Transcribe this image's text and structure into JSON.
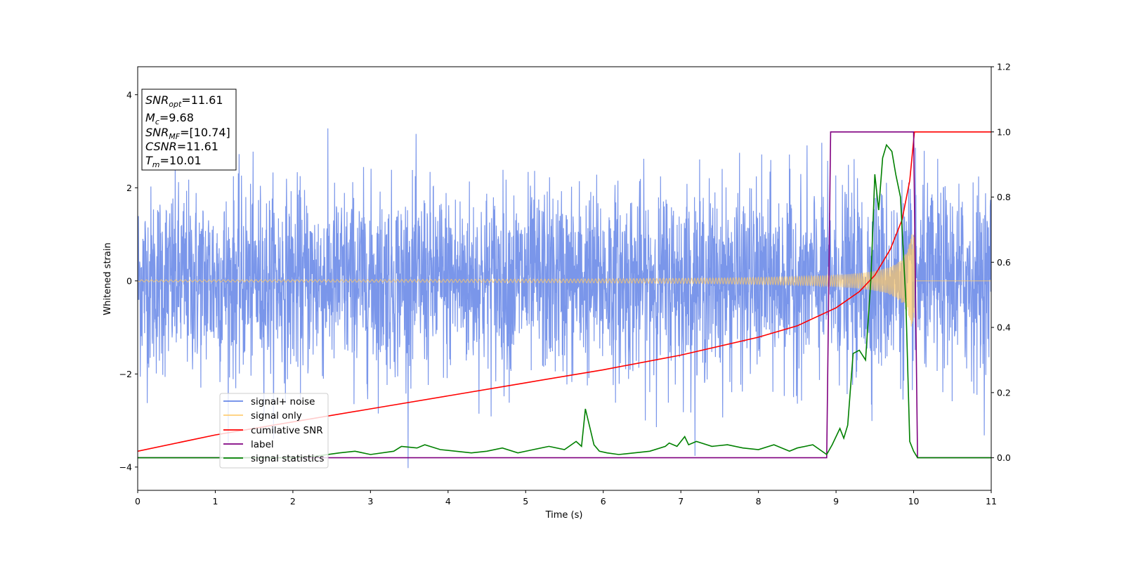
{
  "chart_data": {
    "type": "line",
    "xlabel": "Time (s)",
    "ylabel_left": "Whitened strain",
    "ylabel_right": "",
    "xlim": [
      0,
      11
    ],
    "ylim_left": [
      -4.5,
      4.6
    ],
    "ylim_right": [
      -0.1,
      1.2
    ],
    "x_ticks": [
      "0",
      "1",
      "2",
      "3",
      "4",
      "5",
      "6",
      "7",
      "8",
      "9",
      "10",
      "11"
    ],
    "y_ticks_left": [
      "−4",
      "−2",
      "0",
      "2",
      "4"
    ],
    "y_ticks_left_values": [
      -4,
      -2,
      0,
      2,
      4
    ],
    "y_ticks_right": [
      "0.0",
      "0.2",
      "0.4",
      "0.6",
      "0.8",
      "1.0",
      "1.2"
    ],
    "y_ticks_right_values": [
      0.0,
      0.2,
      0.4,
      0.6,
      0.8,
      1.0,
      1.2
    ],
    "grid": false,
    "legend_position": "lower-left",
    "legend": [
      {
        "name": "signal+ noise",
        "color": "#4169e1"
      },
      {
        "name": "signal only",
        "color": "#ffc966"
      },
      {
        "name": "cumilative SNR",
        "color": "#ff0000"
      },
      {
        "name": "label",
        "color": "#800080"
      },
      {
        "name": "signal statistics",
        "color": "#008000"
      }
    ],
    "info_box": {
      "snr_opt": {
        "sym": "SNR",
        "sub": "opt",
        "value": "=11.61"
      },
      "mc": {
        "sym": "M",
        "sub": "c",
        "value": "=9.68"
      },
      "snr_mf": {
        "sym": "SNR",
        "sub": "MF",
        "value": "=[10.74]"
      },
      "csnr": {
        "sym": "CSNR",
        "value": "=11.61"
      },
      "tm": {
        "sym": "T",
        "sub": "m",
        "value": "=10.01"
      }
    },
    "series": [
      {
        "name": "signal+ noise",
        "axis": "left",
        "color": "#4169e1",
        "alpha": 0.7,
        "kind": "noise",
        "sigma": 1.0,
        "t_start": 0,
        "t_end": 11
      },
      {
        "name": "signal only",
        "axis": "left",
        "color": "#ffc966",
        "alpha": 0.7,
        "kind": "chirp",
        "t_merge": 10.01,
        "amp_start": 0.03,
        "amp_end": 1.0,
        "t_end": 11
      },
      {
        "name": "cumilative SNR",
        "axis": "right",
        "color": "#ff0000",
        "x": [
          0,
          1,
          2,
          3,
          4,
          5,
          6,
          7,
          8,
          8.5,
          9,
          9.3,
          9.5,
          9.7,
          9.85,
          9.95,
          10.01,
          10.02,
          11
        ],
        "y": [
          0.02,
          0.07,
          0.11,
          0.15,
          0.19,
          0.23,
          0.27,
          0.315,
          0.37,
          0.405,
          0.46,
          0.51,
          0.56,
          0.64,
          0.73,
          0.85,
          1.0,
          1.0,
          1.0
        ]
      },
      {
        "name": "label",
        "axis": "right",
        "color": "#800080",
        "x": [
          0,
          8.88,
          8.93,
          10.0,
          10.05,
          11
        ],
        "y": [
          0.0,
          0.0,
          1.0,
          1.0,
          0.0,
          0.0
        ]
      },
      {
        "name": "signal statistics",
        "axis": "right",
        "color": "#008000",
        "x": [
          0,
          2.0,
          2.3,
          2.6,
          2.8,
          3.0,
          3.3,
          3.4,
          3.6,
          3.7,
          3.9,
          4.1,
          4.3,
          4.5,
          4.7,
          4.9,
          5.1,
          5.3,
          5.5,
          5.65,
          5.72,
          5.77,
          5.83,
          5.88,
          5.95,
          6.05,
          6.2,
          6.4,
          6.6,
          6.8,
          6.85,
          6.95,
          7.05,
          7.1,
          7.2,
          7.4,
          7.6,
          7.8,
          8.0,
          8.2,
          8.4,
          8.5,
          8.7,
          8.88,
          8.95,
          9.05,
          9.1,
          9.15,
          9.22,
          9.3,
          9.38,
          9.45,
          9.5,
          9.55,
          9.6,
          9.65,
          9.72,
          9.77,
          9.83,
          9.9,
          9.95,
          10.0,
          10.05,
          10.1,
          11
        ],
        "y": [
          0.0,
          0.0,
          0.005,
          0.015,
          0.02,
          0.01,
          0.02,
          0.035,
          0.03,
          0.04,
          0.025,
          0.02,
          0.015,
          0.02,
          0.03,
          0.015,
          0.025,
          0.035,
          0.025,
          0.05,
          0.035,
          0.15,
          0.09,
          0.04,
          0.02,
          0.015,
          0.01,
          0.015,
          0.02,
          0.035,
          0.045,
          0.035,
          0.065,
          0.04,
          0.05,
          0.035,
          0.04,
          0.03,
          0.025,
          0.04,
          0.02,
          0.03,
          0.04,
          0.01,
          0.04,
          0.09,
          0.06,
          0.1,
          0.32,
          0.33,
          0.3,
          0.55,
          0.87,
          0.76,
          0.92,
          0.96,
          0.94,
          0.87,
          0.8,
          0.48,
          0.05,
          0.02,
          0.0,
          0.0,
          0.0
        ]
      }
    ]
  }
}
